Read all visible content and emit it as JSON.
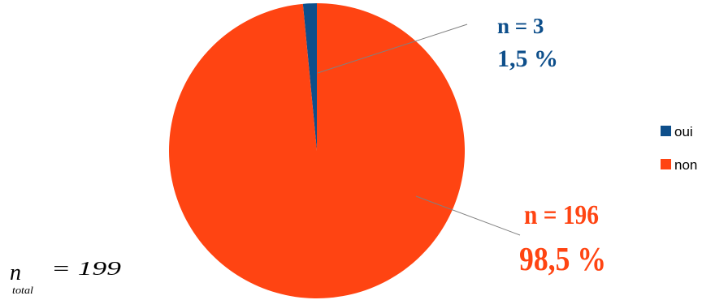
{
  "chart_data": {
    "type": "pie",
    "categories": [
      "oui",
      "non"
    ],
    "values": [
      3,
      196
    ],
    "percent_labels": [
      "1,5 %",
      "98,5 %"
    ],
    "count_labels": [
      "n = 3",
      "n = 196"
    ],
    "colors": [
      "#0e4f8b",
      "#ff4412"
    ],
    "legend": {
      "position": "right",
      "entries": [
        "oui",
        "non"
      ]
    },
    "total": {
      "symbol": "n",
      "subscript": "total",
      "value_text": "= 199"
    }
  }
}
